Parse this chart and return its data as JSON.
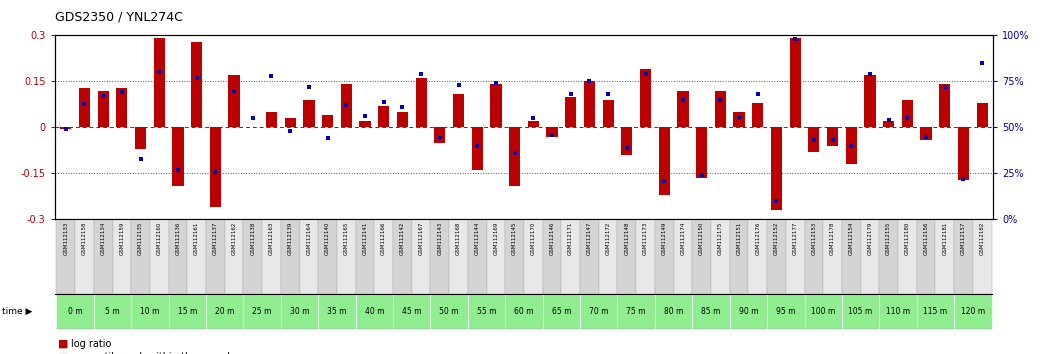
{
  "title": "GDS2350 / YNL274C",
  "gsm_labels": [
    "GSM112133",
    "GSM112158",
    "GSM112134",
    "GSM112159",
    "GSM112135",
    "GSM112160",
    "GSM112136",
    "GSM112161",
    "GSM112137",
    "GSM112162",
    "GSM112138",
    "GSM112163",
    "GSM112139",
    "GSM112164",
    "GSM112140",
    "GSM112165",
    "GSM112141",
    "GSM112166",
    "GSM112142",
    "GSM112167",
    "GSM112143",
    "GSM112168",
    "GSM112144",
    "GSM112169",
    "GSM112145",
    "GSM112170",
    "GSM112146",
    "GSM112171",
    "GSM112147",
    "GSM112172",
    "GSM112148",
    "GSM112173",
    "GSM112149",
    "GSM112174",
    "GSM112150",
    "GSM112175",
    "GSM112151",
    "GSM112176",
    "GSM112152",
    "GSM112177",
    "GSM112153",
    "GSM112178",
    "GSM112154",
    "GSM112179",
    "GSM112155",
    "GSM112180",
    "GSM112156",
    "GSM112181",
    "GSM112157",
    "GSM112182"
  ],
  "time_labels": [
    "0 m",
    "5 m",
    "10 m",
    "15 m",
    "20 m",
    "25 m",
    "30 m",
    "35 m",
    "40 m",
    "45 m",
    "50 m",
    "55 m",
    "60 m",
    "65 m",
    "70 m",
    "75 m",
    "80 m",
    "85 m",
    "90 m",
    "95 m",
    "100 m",
    "105 m",
    "110 m",
    "115 m",
    "120 m"
  ],
  "log_ratio": [
    -0.005,
    0.13,
    0.12,
    0.13,
    -0.07,
    0.29,
    -0.19,
    0.28,
    -0.26,
    0.17,
    0.0,
    0.05,
    0.03,
    0.09,
    0.04,
    0.14,
    0.02,
    0.07,
    0.05,
    0.16,
    -0.05,
    0.11,
    -0.14,
    0.14,
    -0.19,
    0.02,
    -0.03,
    0.1,
    0.15,
    0.09,
    -0.09,
    0.19,
    -0.22,
    0.12,
    -0.165,
    0.12,
    0.05,
    0.08,
    -0.27,
    0.29,
    -0.08,
    -0.06,
    -0.12,
    0.17,
    0.02,
    0.09,
    -0.04,
    0.14,
    -0.17,
    0.08
  ],
  "percentile": [
    49,
    63,
    67,
    69,
    33,
    80,
    27,
    77,
    26,
    70,
    55,
    78,
    48,
    72,
    44,
    62,
    56,
    64,
    61,
    79,
    44,
    73,
    40,
    74,
    36,
    55,
    46,
    68,
    75,
    68,
    39,
    79,
    21,
    65,
    24,
    65,
    55,
    68,
    10,
    98,
    43,
    43,
    40,
    79,
    54,
    55,
    45,
    72,
    22,
    85
  ],
  "ylim_left": [
    -0.3,
    0.3
  ],
  "ylim_right": [
    0,
    100
  ],
  "bar_color": "#bb0000",
  "dot_color": "#0000bb",
  "hline_color": "#cc0000",
  "dotted_color": "#555555",
  "bg_color": "#ffffff",
  "title_fontsize": 9,
  "time_bg_colors": [
    "#ffffff",
    "#ffffff",
    "#ffffff",
    "#ffffff",
    "#90ee90",
    "#90ee90",
    "#90ee90",
    "#90ee90",
    "#90ee90",
    "#90ee90",
    "#90ee90",
    "#90ee90",
    "#90ee90",
    "#90ee90",
    "#90ee90",
    "#90ee90",
    "#90ee90",
    "#90ee90",
    "#90ee90",
    "#90ee90",
    "#90ee90",
    "#90ee90",
    "#90ee90",
    "#90ee90",
    "#90ee90"
  ],
  "legend_log_color": "#bb0000",
  "legend_pct_color": "#0000bb"
}
